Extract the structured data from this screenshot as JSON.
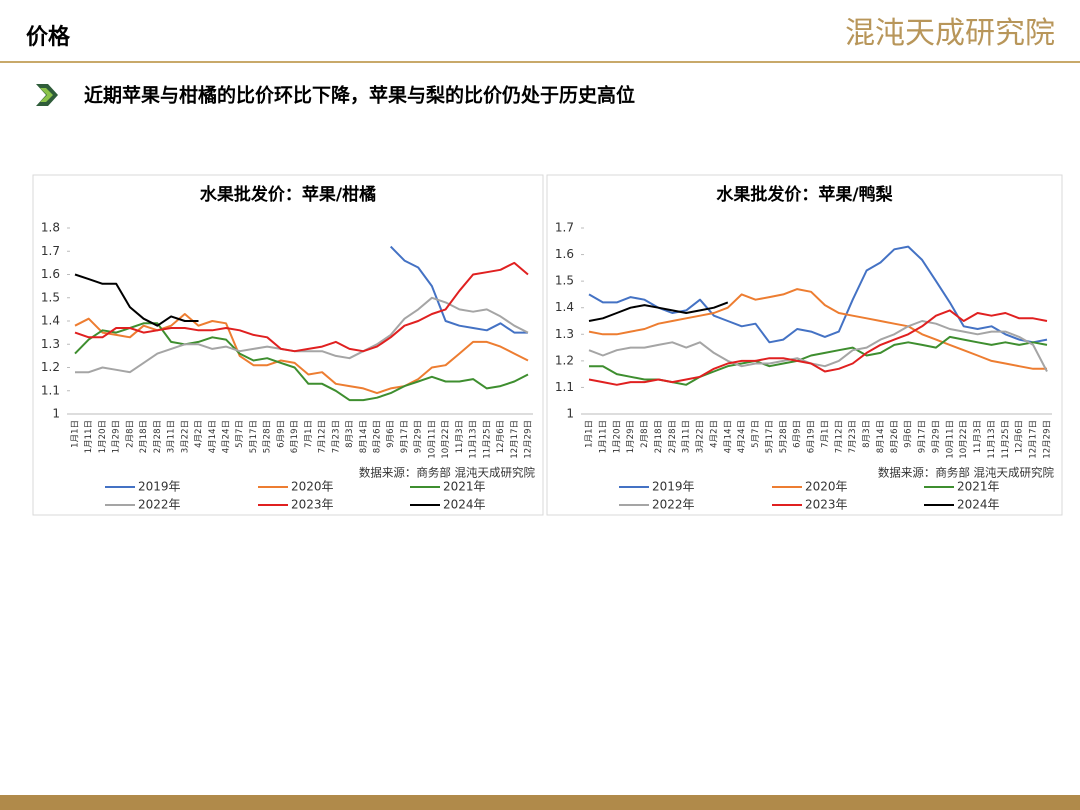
{
  "header": {
    "title": "价格",
    "logo": "混沌天成研究院"
  },
  "subtitle": "近期苹果与柑橘的比价环比下降，苹果与梨的比价仍处于历史高位",
  "chart_data": [
    {
      "type": "line",
      "title": "水果批发价：苹果/柑橘",
      "source": "数据来源：商务部  混沌天成研究院",
      "categories": [
        "1月1日",
        "1月11日",
        "1月20日",
        "1月29日",
        "2月8日",
        "2月18日",
        "2月28日",
        "3月11日",
        "3月22日",
        "4月2日",
        "4月14日",
        "4月24日",
        "5月7日",
        "5月17日",
        "5月28日",
        "6月9日",
        "6月19日",
        "7月1日",
        "7月12日",
        "7月23日",
        "8月3日",
        "8月14日",
        "8月26日",
        "9月6日",
        "9月17日",
        "9月29日",
        "10月11日",
        "10月22日",
        "11月3日",
        "11月13日",
        "11月25日",
        "12月6日",
        "12月17日",
        "12月29日"
      ],
      "ylim": [
        1,
        1.8
      ],
      "yticks": [
        1,
        1.1,
        1.2,
        1.3,
        1.4,
        1.5,
        1.6,
        1.7,
        1.8
      ],
      "series": [
        {
          "name": "2019年",
          "color": "#4472c4",
          "values": [
            null,
            null,
            null,
            null,
            null,
            null,
            null,
            null,
            null,
            null,
            null,
            null,
            null,
            null,
            null,
            null,
            null,
            null,
            null,
            null,
            null,
            null,
            null,
            1.72,
            1.66,
            1.63,
            1.55,
            1.4,
            1.38,
            1.37,
            1.36,
            1.39,
            1.35,
            1.35
          ]
        },
        {
          "name": "2020年",
          "color": "#ed7d31",
          "values": [
            1.38,
            1.41,
            1.35,
            1.34,
            1.33,
            1.38,
            1.36,
            1.38,
            1.43,
            1.38,
            1.4,
            1.39,
            1.25,
            1.21,
            1.21,
            1.23,
            1.22,
            1.17,
            1.18,
            1.13,
            1.12,
            1.11,
            1.09,
            1.11,
            1.12,
            1.15,
            1.2,
            1.21,
            1.26,
            1.31,
            1.31,
            1.29,
            1.26,
            1.23
          ]
        },
        {
          "name": "2021年",
          "color": "#3e8e2f",
          "values": [
            1.26,
            1.32,
            1.36,
            1.35,
            1.37,
            1.39,
            1.39,
            1.31,
            1.3,
            1.31,
            1.33,
            1.32,
            1.26,
            1.23,
            1.24,
            1.22,
            1.2,
            1.13,
            1.13,
            1.1,
            1.06,
            1.06,
            1.07,
            1.09,
            1.12,
            1.14,
            1.16,
            1.14,
            1.14,
            1.15,
            1.11,
            1.12,
            1.14,
            1.17
          ]
        },
        {
          "name": "2022年",
          "color": "#a5a5a5",
          "values": [
            1.18,
            1.18,
            1.2,
            1.19,
            1.18,
            1.22,
            1.26,
            1.28,
            1.3,
            1.3,
            1.28,
            1.29,
            1.27,
            1.28,
            1.29,
            1.28,
            1.27,
            1.27,
            1.27,
            1.25,
            1.24,
            1.27,
            1.3,
            1.34,
            1.41,
            1.45,
            1.5,
            1.48,
            1.45,
            1.44,
            1.45,
            1.42,
            1.38,
            1.35
          ]
        },
        {
          "name": "2023年",
          "color": "#e02020",
          "values": [
            1.35,
            1.33,
            1.33,
            1.37,
            1.37,
            1.35,
            1.36,
            1.37,
            1.37,
            1.36,
            1.36,
            1.37,
            1.36,
            1.34,
            1.33,
            1.28,
            1.27,
            1.28,
            1.29,
            1.31,
            1.28,
            1.27,
            1.29,
            1.33,
            1.38,
            1.4,
            1.43,
            1.45,
            1.53,
            1.6,
            1.61,
            1.62,
            1.65,
            1.6
          ]
        },
        {
          "name": "2024年",
          "color": "#000000",
          "values": [
            1.6,
            1.58,
            1.56,
            1.56,
            1.46,
            1.41,
            1.38,
            1.42,
            1.4,
            1.4,
            null,
            null,
            null,
            null,
            null,
            null,
            null,
            null,
            null,
            null,
            null,
            null,
            null,
            null,
            null,
            null,
            null,
            null,
            null,
            null,
            null,
            null,
            null,
            null
          ]
        }
      ]
    },
    {
      "type": "line",
      "title": "水果批发价：苹果/鸭梨",
      "source": "数据来源：商务部  混沌天成研究院",
      "categories": [
        "1月1日",
        "1月11日",
        "1月20日",
        "1月29日",
        "2月8日",
        "2月18日",
        "2月28日",
        "3月11日",
        "3月22日",
        "4月2日",
        "4月14日",
        "4月24日",
        "5月7日",
        "5月17日",
        "5月28日",
        "6月9日",
        "6月19日",
        "7月1日",
        "7月12日",
        "7月23日",
        "8月3日",
        "8月14日",
        "8月26日",
        "9月6日",
        "9月17日",
        "9月29日",
        "10月11日",
        "10月22日",
        "11月3日",
        "11月13日",
        "11月25日",
        "12月6日",
        "12月17日",
        "12月29日"
      ],
      "ylim": [
        1,
        1.7
      ],
      "yticks": [
        1,
        1.1,
        1.2,
        1.3,
        1.4,
        1.5,
        1.6,
        1.7
      ],
      "series": [
        {
          "name": "2019年",
          "color": "#4472c4",
          "values": [
            1.45,
            1.42,
            1.42,
            1.44,
            1.43,
            1.4,
            1.38,
            1.39,
            1.43,
            1.37,
            1.35,
            1.33,
            1.34,
            1.27,
            1.28,
            1.32,
            1.31,
            1.29,
            1.31,
            1.43,
            1.54,
            1.57,
            1.62,
            1.63,
            1.58,
            1.5,
            1.42,
            1.33,
            1.32,
            1.33,
            1.3,
            1.28,
            1.27,
            1.28
          ]
        },
        {
          "name": "2020年",
          "color": "#ed7d31",
          "values": [
            1.31,
            1.3,
            1.3,
            1.31,
            1.32,
            1.34,
            1.35,
            1.36,
            1.37,
            1.38,
            1.4,
            1.45,
            1.43,
            1.44,
            1.45,
            1.47,
            1.46,
            1.41,
            1.38,
            1.37,
            1.36,
            1.35,
            1.34,
            1.33,
            1.3,
            1.28,
            1.26,
            1.24,
            1.22,
            1.2,
            1.19,
            1.18,
            1.17,
            1.17
          ]
        },
        {
          "name": "2021年",
          "color": "#3e8e2f",
          "values": [
            1.18,
            1.18,
            1.15,
            1.14,
            1.13,
            1.13,
            1.12,
            1.11,
            1.14,
            1.16,
            1.18,
            1.19,
            1.2,
            1.18,
            1.19,
            1.2,
            1.22,
            1.23,
            1.24,
            1.25,
            1.22,
            1.23,
            1.26,
            1.27,
            1.26,
            1.25,
            1.29,
            1.28,
            1.27,
            1.26,
            1.27,
            1.26,
            1.27,
            1.26
          ]
        },
        {
          "name": "2022年",
          "color": "#a5a5a5",
          "values": [
            1.24,
            1.22,
            1.24,
            1.25,
            1.25,
            1.26,
            1.27,
            1.25,
            1.27,
            1.23,
            1.2,
            1.18,
            1.19,
            1.19,
            1.2,
            1.21,
            1.19,
            1.18,
            1.2,
            1.24,
            1.25,
            1.28,
            1.3,
            1.33,
            1.35,
            1.34,
            1.32,
            1.31,
            1.3,
            1.31,
            1.31,
            1.29,
            1.26,
            1.16
          ]
        },
        {
          "name": "2023年",
          "color": "#e02020",
          "values": [
            1.13,
            1.12,
            1.11,
            1.12,
            1.12,
            1.13,
            1.12,
            1.13,
            1.14,
            1.17,
            1.19,
            1.2,
            1.2,
            1.21,
            1.21,
            1.2,
            1.19,
            1.16,
            1.17,
            1.19,
            1.23,
            1.26,
            1.28,
            1.3,
            1.33,
            1.37,
            1.39,
            1.35,
            1.38,
            1.37,
            1.38,
            1.36,
            1.36,
            1.35
          ]
        },
        {
          "name": "2024年",
          "color": "#000000",
          "values": [
            1.35,
            1.36,
            1.38,
            1.4,
            1.41,
            1.4,
            1.39,
            1.38,
            1.39,
            1.4,
            1.42,
            null,
            null,
            null,
            null,
            null,
            null,
            null,
            null,
            null,
            null,
            null,
            null,
            null,
            null,
            null,
            null,
            null,
            null,
            null,
            null,
            null,
            null,
            null
          ]
        }
      ]
    }
  ]
}
